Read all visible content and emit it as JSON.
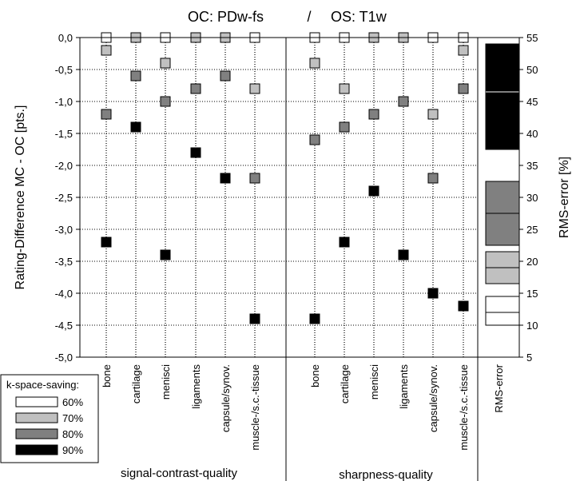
{
  "chart_data": {
    "type": "scatter",
    "title_left": "OC: PDw-fs",
    "title_sep": "/",
    "title_right": "OS: T1w",
    "ylabel": "Rating-Difference MC - OC [pts.]",
    "y2label": "RMS-error [%]",
    "ylim": [
      -5,
      0
    ],
    "y2lim": [
      5,
      55
    ],
    "yticks": [
      "0,0",
      "-0,5",
      "-1,0",
      "-1,5",
      "-2,0",
      "-2,5",
      "-3,0",
      "-3,5",
      "-4,0",
      "-4,5",
      "-5,0"
    ],
    "y2ticks": [
      "55",
      "50",
      "45",
      "40",
      "35",
      "30",
      "25",
      "20",
      "15",
      "10",
      "5"
    ],
    "grid": true,
    "groups": [
      {
        "name": "signal-contrast-quality",
        "categories": [
          "bone",
          "cartilage",
          "menisci",
          "ligaments",
          "capsule/synov.",
          "muscle-/s.c.-tissue"
        ]
      },
      {
        "name": "sharpness-quality",
        "categories": [
          "bone",
          "cartilage",
          "menisci",
          "ligaments",
          "capsule/synov.",
          "muscle-/s.c.-tissue"
        ]
      }
    ],
    "rms_label": "RMS-error",
    "legend_title": "k-space-saving:",
    "series": [
      {
        "name": "60%",
        "color": "#ffffff",
        "values": [
          0.0,
          0.0,
          0.0,
          0.0,
          0.0,
          0.0,
          0.0,
          0.0,
          0.0,
          0.0,
          0.0,
          0.0
        ],
        "rms": {
          "low": 10,
          "median": 12,
          "high": 14.5
        }
      },
      {
        "name": "70%",
        "color": "#c0c0c0",
        "values": [
          -0.2,
          0.0,
          -0.4,
          0.0,
          0.0,
          -0.8,
          -0.4,
          -0.8,
          0.0,
          0.0,
          -1.2,
          -0.2
        ],
        "rms": {
          "low": 16.5,
          "median": 19,
          "high": 21.5
        }
      },
      {
        "name": "80%",
        "color": "#808080",
        "values": [
          -1.2,
          -0.6,
          -1.0,
          -0.8,
          -0.6,
          -2.2,
          -1.6,
          -1.4,
          -1.2,
          -1.0,
          -2.2,
          -0.8
        ],
        "rms": {
          "low": 22.5,
          "median": 27.5,
          "high": 32.5
        }
      },
      {
        "name": "90%",
        "color": "#000000",
        "values": [
          -3.2,
          -1.4,
          -3.4,
          -1.8,
          -2.2,
          -4.4,
          -4.4,
          -3.2,
          -2.4,
          -3.4,
          -4.0,
          -4.2
        ],
        "rms": {
          "low": 37.5,
          "median": 46.5,
          "high": 54
        }
      }
    ]
  }
}
